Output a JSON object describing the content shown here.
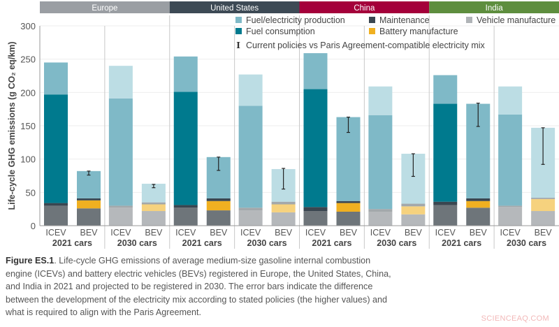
{
  "chart_data": {
    "type": "bar",
    "stacked": true,
    "ylabel": "Life-cycle GHG emissions (g CO₂ eq/km)",
    "ylim": [
      0,
      300
    ],
    "yticks": [
      0,
      50,
      100,
      150,
      200,
      250,
      300
    ],
    "grid": true,
    "legend_position": "top-right",
    "regions": [
      {
        "name": "Europe",
        "color": "#9a9ea3"
      },
      {
        "name": "United States",
        "color": "#3d4a55"
      },
      {
        "name": "China",
        "color": "#a4003a"
      },
      {
        "name": "India",
        "color": "#5e8e3e"
      }
    ],
    "periods": [
      "2021 cars",
      "2030 cars"
    ],
    "vehicle_types": [
      "ICEV",
      "BEV"
    ],
    "categories": [
      "Europe 2021 ICEV",
      "Europe 2021 BEV",
      "Europe 2030 ICEV",
      "Europe 2030 BEV",
      "United States 2021 ICEV",
      "United States 2021 BEV",
      "United States 2030 ICEV",
      "United States 2030 BEV",
      "China 2021 ICEV",
      "China 2021 BEV",
      "China 2030 ICEV",
      "China 2030 BEV",
      "India 2021 ICEV",
      "India 2021 BEV",
      "India 2030 ICEV",
      "India 2030 BEV"
    ],
    "series": [
      {
        "name": "Vehicle manufacture",
        "color": "#6e757a",
        "color_2030": "#b5b8bb",
        "values": [
          30,
          26,
          27,
          22,
          27,
          23,
          23,
          20,
          22,
          21,
          21,
          17,
          31,
          27,
          28,
          22
        ]
      },
      {
        "name": "Battery manufacture",
        "color": "#f0b021",
        "color_2030": "#f6d27e",
        "values": [
          0,
          12,
          0,
          10,
          0,
          14,
          0,
          12,
          0,
          13,
          0,
          12,
          0,
          10,
          0,
          18
        ]
      },
      {
        "name": "Maintenance",
        "color": "#3a4650",
        "color_2030": "#a3a8ab",
        "values": [
          4,
          3,
          3,
          3,
          4,
          4,
          4,
          4,
          6,
          3,
          4,
          4,
          5,
          4,
          2,
          2
        ]
      },
      {
        "name": "Fuel consumption",
        "color": "#007a8e",
        "color_2030": "#7fb9c7",
        "values": [
          163,
          0,
          161,
          0,
          170,
          0,
          153,
          0,
          177,
          0,
          141,
          0,
          147,
          0,
          137,
          0
        ]
      },
      {
        "name": "Fuel/electricity production",
        "color": "#7fb9c7",
        "color_2030": "#bcdde4",
        "values": [
          48,
          41,
          49,
          28,
          53,
          62,
          47,
          49,
          54,
          126,
          43,
          75,
          43,
          142,
          42,
          105
        ]
      }
    ],
    "error_bars": {
      "name": "Current policies vs Paris Agreement-compatible electricity mix",
      "values": [
        null,
        [
          76,
          82
        ],
        null,
        [
          57,
          62
        ],
        null,
        [
          83,
          103
        ],
        null,
        [
          55,
          86
        ],
        null,
        [
          140,
          163
        ],
        null,
        [
          74,
          108
        ],
        null,
        [
          149,
          184
        ],
        null,
        [
          92,
          147
        ]
      ]
    },
    "legend": [
      {
        "label": "Fuel/electricity production",
        "color": "#7fb9c7"
      },
      {
        "label": "Maintenance",
        "color": "#3a4650"
      },
      {
        "label": "Vehicle manufacture",
        "color": "#b0b4b7"
      },
      {
        "label": "Fuel consumption",
        "color": "#007a8e"
      },
      {
        "label": "Battery manufacture",
        "color": "#f0b021"
      },
      {
        "label": "Current policies vs Paris Agreement-compatible electricity mix",
        "color": "#333333"
      }
    ]
  },
  "caption": {
    "figure_label": "Figure ES.1",
    "text": ". Life-cycle GHG emissions of average medium-size gasoline internal combustion engine (ICEVs) and battery electric vehicles (BEVs) registered in Europe, the United States, China, and India in 2021 and projected to be registered in 2030. The error bars indicate the difference between the development of the electricity mix according to stated policies (the higher values) and what is required to align with the Paris Agreement."
  },
  "watermark": "SCIENCEAQ.COM"
}
